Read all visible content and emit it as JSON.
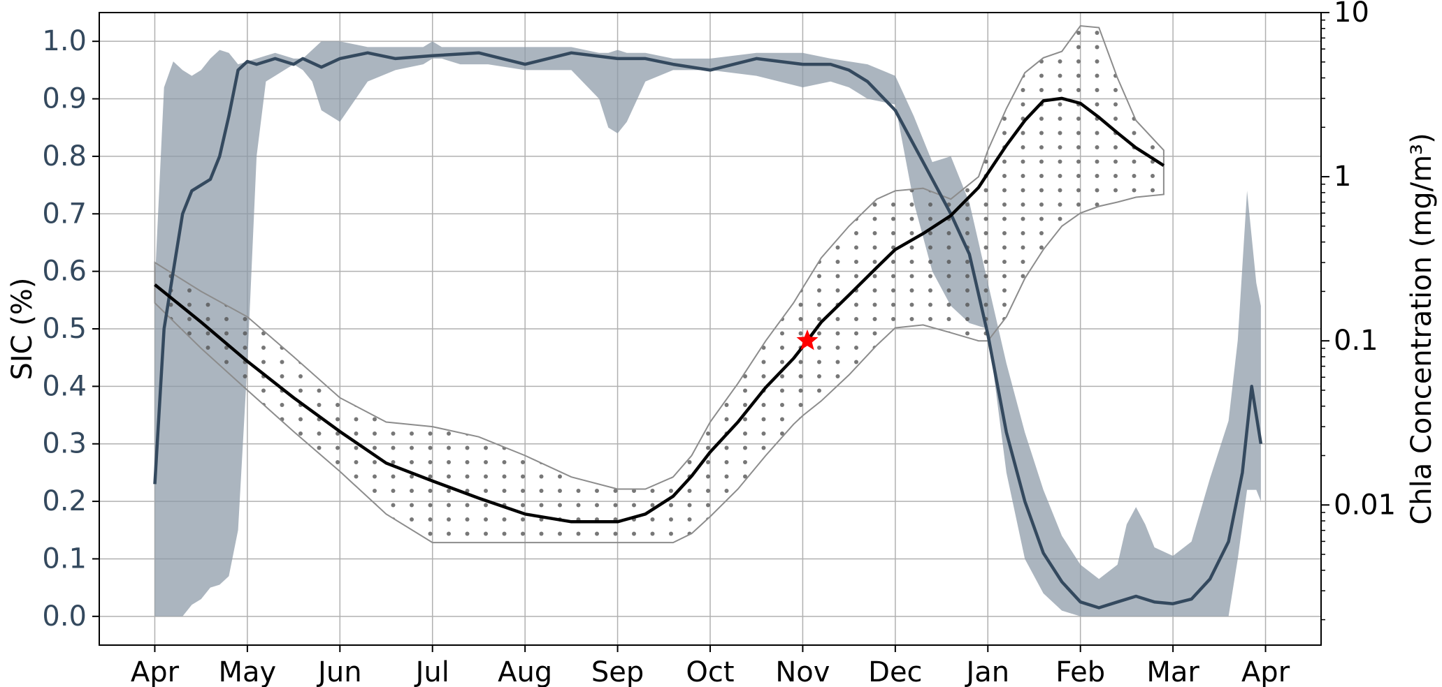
{
  "chart_data": {
    "type": "line",
    "title": "",
    "xlabel": "",
    "x_ticks": [
      "Apr",
      "May",
      "Jun",
      "Jul",
      "Aug",
      "Sep",
      "Oct",
      "Nov",
      "Dec",
      "Jan",
      "Feb",
      "Mar",
      "Apr"
    ],
    "x_range": [
      -0.6,
      12.6
    ],
    "grid": true,
    "left_axis": {
      "label": "SIC (%)",
      "scale": "linear",
      "range": [
        -0.05,
        1.05
      ],
      "ticks": [
        "0.0",
        "0.1",
        "0.2",
        "0.3",
        "0.4",
        "0.5",
        "0.6",
        "0.7",
        "0.8",
        "0.9",
        "1.0"
      ],
      "color": "#34495e"
    },
    "right_axis": {
      "label": "Chla Concentration (mg/m³)",
      "scale": "log",
      "range": [
        0.0014,
        10
      ],
      "ticks": [
        "0.01",
        "0.1",
        "1",
        "10"
      ],
      "color": "#000000"
    },
    "series": [
      {
        "axis": "left",
        "kind": "mean-line",
        "color": "#34495e",
        "x": [
          0,
          0.1,
          0.2,
          0.3,
          0.4,
          0.5,
          0.6,
          0.7,
          0.8,
          0.9,
          1.0,
          1.1,
          1.2,
          1.3,
          1.4,
          1.5,
          1.6,
          1.8,
          2.0,
          2.3,
          2.6,
          3.0,
          3.5,
          4.0,
          4.5,
          5.0,
          5.3,
          5.6,
          6.0,
          6.5,
          7.0,
          7.3,
          7.5,
          7.7,
          8.0,
          8.3,
          8.6,
          8.8,
          9.0,
          9.2,
          9.4,
          9.6,
          9.8,
          10.0,
          10.2,
          10.4,
          10.6,
          10.8,
          11.0,
          11.2,
          11.4,
          11.6,
          11.75,
          11.85,
          11.95
        ],
        "y": [
          0.23,
          0.5,
          0.6,
          0.7,
          0.74,
          0.75,
          0.76,
          0.8,
          0.87,
          0.95,
          0.965,
          0.96,
          0.965,
          0.97,
          0.965,
          0.96,
          0.97,
          0.955,
          0.97,
          0.98,
          0.97,
          0.975,
          0.98,
          0.96,
          0.98,
          0.97,
          0.97,
          0.96,
          0.95,
          0.97,
          0.96,
          0.96,
          0.95,
          0.93,
          0.88,
          0.79,
          0.7,
          0.63,
          0.49,
          0.32,
          0.2,
          0.11,
          0.06,
          0.025,
          0.015,
          0.025,
          0.035,
          0.025,
          0.022,
          0.03,
          0.065,
          0.13,
          0.25,
          0.4,
          0.3
        ]
      },
      {
        "axis": "left",
        "kind": "range-band",
        "color": "#34495e",
        "x": [
          0,
          0.1,
          0.2,
          0.3,
          0.4,
          0.5,
          0.6,
          0.7,
          0.8,
          0.9,
          1.0,
          1.1,
          1.2,
          1.3,
          1.4,
          1.5,
          1.6,
          1.7,
          1.8,
          2.0,
          2.3,
          2.6,
          2.9,
          3.0,
          3.1,
          3.3,
          3.6,
          4.0,
          4.5,
          4.8,
          4.9,
          5.0,
          5.1,
          5.3,
          5.6,
          6.0,
          6.5,
          7.0,
          7.3,
          7.5,
          7.7,
          8.0,
          8.2,
          8.4,
          8.6,
          8.8,
          9.0,
          9.2,
          9.4,
          9.6,
          9.8,
          10.0,
          10.2,
          10.4,
          10.5,
          10.6,
          10.7,
          10.8,
          11.0,
          11.2,
          11.4,
          11.6,
          11.7,
          11.8,
          11.9,
          11.95
        ],
        "upper": [
          0.58,
          0.92,
          0.965,
          0.95,
          0.94,
          0.95,
          0.97,
          0.985,
          0.98,
          0.96,
          0.965,
          0.97,
          0.975,
          0.98,
          0.975,
          0.97,
          0.97,
          0.985,
          1.0,
          1.0,
          0.99,
          0.99,
          0.99,
          1.0,
          0.99,
          0.99,
          0.99,
          0.99,
          0.99,
          0.98,
          0.98,
          0.985,
          0.98,
          0.98,
          0.97,
          0.97,
          0.98,
          0.98,
          0.97,
          0.965,
          0.96,
          0.94,
          0.87,
          0.79,
          0.8,
          0.72,
          0.58,
          0.44,
          0.32,
          0.22,
          0.14,
          0.09,
          0.065,
          0.09,
          0.16,
          0.19,
          0.16,
          0.12,
          0.105,
          0.13,
          0.24,
          0.34,
          0.48,
          0.74,
          0.58,
          0.54
        ],
        "lower": [
          0.0,
          0.0,
          0.0,
          0.0,
          0.02,
          0.03,
          0.05,
          0.055,
          0.07,
          0.15,
          0.44,
          0.8,
          0.93,
          0.94,
          0.95,
          0.96,
          0.95,
          0.93,
          0.88,
          0.86,
          0.93,
          0.95,
          0.96,
          0.97,
          0.97,
          0.96,
          0.96,
          0.95,
          0.95,
          0.9,
          0.85,
          0.84,
          0.86,
          0.93,
          0.95,
          0.95,
          0.94,
          0.92,
          0.93,
          0.92,
          0.9,
          0.89,
          0.72,
          0.6,
          0.54,
          0.51,
          0.5,
          0.25,
          0.1,
          0.04,
          0.01,
          0.0,
          0.0,
          0.0,
          0.0,
          0.0,
          0.0,
          0.0,
          0.0,
          0.0,
          0.0,
          0.0,
          0.1,
          0.22,
          0.22,
          0.2
        ]
      },
      {
        "axis": "right",
        "kind": "mean-line",
        "color": "#000000",
        "x": [
          0,
          0.5,
          1.0,
          1.5,
          2.0,
          2.5,
          3.0,
          3.5,
          4.0,
          4.5,
          5.0,
          5.3,
          5.6,
          5.8,
          6.0,
          6.3,
          6.6,
          6.9,
          7.0,
          7.2,
          7.5,
          7.8,
          8.0,
          8.3,
          8.6,
          8.9,
          9.0,
          9.2,
          9.4,
          9.6,
          9.8,
          10.0,
          10.2,
          10.4,
          10.6,
          10.9
        ],
        "y": [
          0.22,
          0.13,
          0.075,
          0.045,
          0.028,
          0.018,
          0.014,
          0.011,
          0.0088,
          0.0079,
          0.0079,
          0.0088,
          0.0113,
          0.015,
          0.021,
          0.032,
          0.052,
          0.078,
          0.092,
          0.13,
          0.19,
          0.28,
          0.36,
          0.45,
          0.58,
          0.86,
          1.05,
          1.55,
          2.2,
          2.9,
          3.0,
          2.8,
          2.3,
          1.85,
          1.5,
          1.17
        ]
      },
      {
        "axis": "right",
        "kind": "range-band",
        "pattern": "dots",
        "color": "#666666",
        "x": [
          0,
          0.5,
          1.0,
          1.5,
          2.0,
          2.5,
          3.0,
          3.5,
          4.0,
          4.5,
          5.0,
          5.3,
          5.6,
          5.8,
          6.0,
          6.3,
          6.6,
          6.9,
          7.0,
          7.2,
          7.5,
          7.8,
          8.0,
          8.3,
          8.6,
          8.9,
          9.0,
          9.2,
          9.4,
          9.6,
          9.8,
          10.0,
          10.2,
          10.4,
          10.6,
          10.9
        ],
        "upper": [
          0.3,
          0.2,
          0.14,
          0.08,
          0.045,
          0.032,
          0.03,
          0.026,
          0.02,
          0.0148,
          0.0125,
          0.0125,
          0.0148,
          0.02,
          0.032,
          0.055,
          0.1,
          0.17,
          0.21,
          0.32,
          0.5,
          0.73,
          0.82,
          0.85,
          0.73,
          1.0,
          1.45,
          2.6,
          4.3,
          5.3,
          5.8,
          8.3,
          8.1,
          4.0,
          2.2,
          1.45
        ],
        "lower": [
          0.17,
          0.09,
          0.05,
          0.028,
          0.016,
          0.0088,
          0.0059,
          0.0059,
          0.0059,
          0.0059,
          0.0059,
          0.0059,
          0.0059,
          0.0067,
          0.0085,
          0.0125,
          0.02,
          0.031,
          0.035,
          0.043,
          0.062,
          0.094,
          0.12,
          0.125,
          0.112,
          0.1,
          0.1,
          0.14,
          0.24,
          0.36,
          0.5,
          0.6,
          0.66,
          0.7,
          0.75,
          0.78
        ]
      }
    ],
    "annotations": [
      {
        "type": "marker",
        "shape": "star",
        "color": "#ff0000",
        "axis": "right",
        "x": 7.05,
        "y": 0.1
      }
    ]
  }
}
